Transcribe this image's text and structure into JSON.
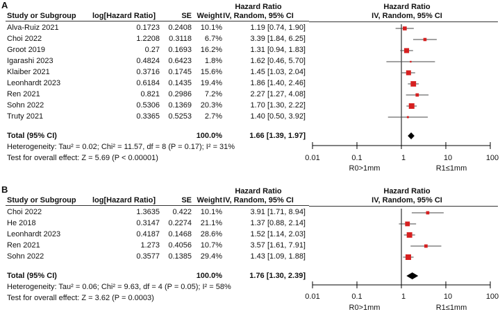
{
  "chart_data": [
    {
      "type": "forest",
      "panel_label": "A",
      "headers": {
        "study": "Study or Subgroup",
        "loghr": "log[Hazard Ratio]",
        "se": "SE",
        "weight": "Weight",
        "hr_title": "Hazard Ratio",
        "hr_sub": "IV, Random, 95% CI",
        "plot_title": "Hazard Ratio",
        "plot_sub": "IV, Random, 95% CI"
      },
      "studies": [
        {
          "name": "Alva-Ruiz 2021",
          "loghr": "0.1723",
          "se": "0.2408",
          "weight": "10.1%",
          "w": 10.1,
          "ci_text": "1.19 [0.74, 1.90]",
          "hr": 1.19,
          "lo": 0.74,
          "hi": 1.9
        },
        {
          "name": "Choi 2022",
          "loghr": "1.2208",
          "se": "0.3118",
          "weight": "6.7%",
          "w": 6.7,
          "ci_text": "3.39 [1.84, 6.25]",
          "hr": 3.39,
          "lo": 1.84,
          "hi": 6.25
        },
        {
          "name": "Groot 2019",
          "loghr": "0.27",
          "se": "0.1693",
          "weight": "16.2%",
          "w": 16.2,
          "ci_text": "1.31 [0.94, 1.83]",
          "hr": 1.31,
          "lo": 0.94,
          "hi": 1.83
        },
        {
          "name": "Igarashi 2023",
          "loghr": "0.4824",
          "se": "0.6423",
          "weight": "1.8%",
          "w": 1.8,
          "ci_text": "1.62 [0.46, 5.70]",
          "hr": 1.62,
          "lo": 0.46,
          "hi": 5.7
        },
        {
          "name": "Klaiber 2021",
          "loghr": "0.3716",
          "se": "0.1745",
          "weight": "15.6%",
          "w": 15.6,
          "ci_text": "1.45 [1.03, 2.04]",
          "hr": 1.45,
          "lo": 1.03,
          "hi": 2.04
        },
        {
          "name": "Leonhardt 2023",
          "loghr": "0.6184",
          "se": "0.1435",
          "weight": "19.4%",
          "w": 19.4,
          "ci_text": "1.86 [1.40, 2.46]",
          "hr": 1.86,
          "lo": 1.4,
          "hi": 2.46
        },
        {
          "name": "Ren 2021",
          "loghr": "0.821",
          "se": "0.2986",
          "weight": "7.2%",
          "w": 7.2,
          "ci_text": "2.27 [1.27, 4.08]",
          "hr": 2.27,
          "lo": 1.27,
          "hi": 4.08
        },
        {
          "name": "Sohn 2022",
          "loghr": "0.5306",
          "se": "0.1369",
          "weight": "20.3%",
          "w": 20.3,
          "ci_text": "1.70 [1.30, 2.22]",
          "hr": 1.7,
          "lo": 1.3,
          "hi": 2.22
        },
        {
          "name": "Truty 2021",
          "loghr": "0.3365",
          "se": "0.5253",
          "weight": "2.7%",
          "w": 2.7,
          "ci_text": "1.40 [0.50, 3.92]",
          "hr": 1.4,
          "lo": 0.5,
          "hi": 3.92
        }
      ],
      "total": {
        "label": "Total (95% CI)",
        "weight": "100.0%",
        "ci_text": "1.66 [1.39, 1.97]",
        "hr": 1.66,
        "lo": 1.39,
        "hi": 1.97
      },
      "heterogeneity": "Heterogeneity: Tau² = 0.02; Chi² = 11.57, df = 8 (P = 0.17); I² = 31%",
      "overall_effect": "Test for overall effect: Z = 5.69 (P < 0.00001)",
      "axis": {
        "scale": "log",
        "min": 0.01,
        "max": 100,
        "ticks": [
          0.01,
          0.1,
          1,
          10,
          100
        ],
        "tick_labels": [
          "0.01",
          "0.1",
          "1",
          "10",
          "100"
        ]
      },
      "favours_left": "R0>1mm",
      "favours_right": "R1≤1mm"
    },
    {
      "type": "forest",
      "panel_label": "B",
      "headers": {
        "study": "Study or Subgroup",
        "loghr": "log[Hazard Ratio]",
        "se": "SE",
        "weight": "Weight",
        "hr_title": "Hazard Ratio",
        "hr_sub": "IV, Random, 95% CI",
        "plot_title": "Hazard Ratio",
        "plot_sub": "IV, Random, 95% CI"
      },
      "studies": [
        {
          "name": "Choi 2022",
          "loghr": "1.3635",
          "se": "0.422",
          "weight": "10.1%",
          "w": 10.1,
          "ci_text": "3.91 [1.71, 8.94]",
          "hr": 3.91,
          "lo": 1.71,
          "hi": 8.94
        },
        {
          "name": "He 2018",
          "loghr": "0.3147",
          "se": "0.2274",
          "weight": "21.1%",
          "w": 21.1,
          "ci_text": "1.37 [0.88, 2.14]",
          "hr": 1.37,
          "lo": 0.88,
          "hi": 2.14
        },
        {
          "name": "Leonhardt 2023",
          "loghr": "0.4187",
          "se": "0.1468",
          "weight": "28.6%",
          "w": 28.6,
          "ci_text": "1.52 [1.14, 2.03]",
          "hr": 1.52,
          "lo": 1.14,
          "hi": 2.03
        },
        {
          "name": "Ren 2021",
          "loghr": "1.273",
          "se": "0.4056",
          "weight": "10.7%",
          "w": 10.7,
          "ci_text": "3.57 [1.61, 7.91]",
          "hr": 3.57,
          "lo": 1.61,
          "hi": 7.91
        },
        {
          "name": "Sohn 2022",
          "loghr": "0.3577",
          "se": "0.1385",
          "weight": "29.4%",
          "w": 29.4,
          "ci_text": "1.43 [1.09, 1.88]",
          "hr": 1.43,
          "lo": 1.09,
          "hi": 1.88
        }
      ],
      "total": {
        "label": "Total (95% CI)",
        "weight": "100.0%",
        "ci_text": "1.76 [1.30, 2.39]",
        "hr": 1.76,
        "lo": 1.3,
        "hi": 2.39
      },
      "heterogeneity": "Heterogeneity: Tau² = 0.06; Chi² = 9.63, df = 4 (P = 0.05); I² = 58%",
      "overall_effect": "Test for overall effect: Z = 3.62 (P = 0.0003)",
      "axis": {
        "scale": "log",
        "min": 0.01,
        "max": 100,
        "ticks": [
          0.01,
          0.1,
          1,
          10,
          100
        ],
        "tick_labels": [
          "0.01",
          "0.1",
          "1",
          "10",
          "100"
        ]
      },
      "favours_left": "R0>1mm",
      "favours_right": "R1≤1mm"
    }
  ],
  "colors": {
    "marker": "#d62020",
    "diamond": "#000000",
    "line": "#333333"
  }
}
